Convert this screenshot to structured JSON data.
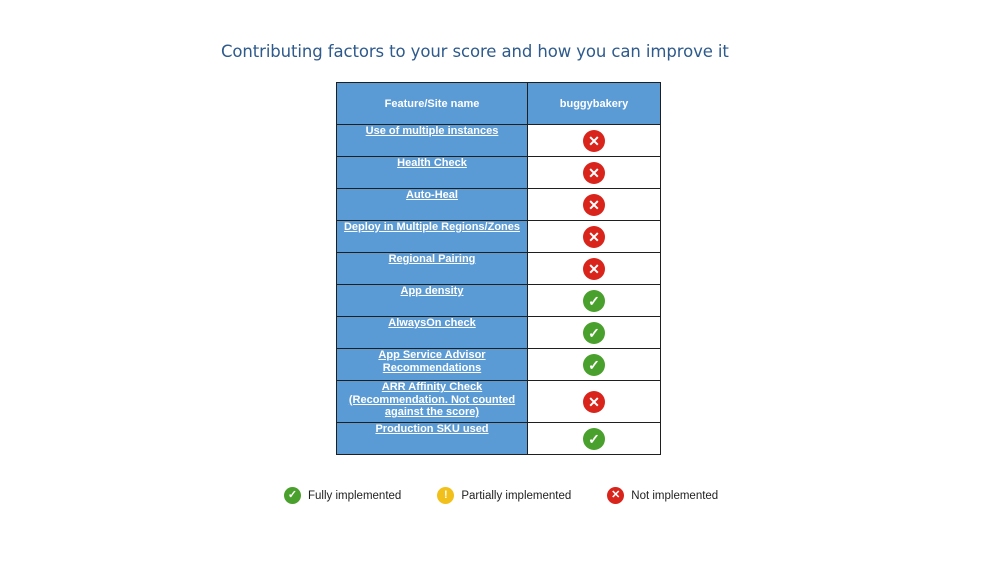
{
  "title": "Contributing factors to your score and how you can improve it",
  "table": {
    "header_feature": "Feature/Site name",
    "header_site": "buggybakery",
    "rows": [
      {
        "feature": "Use of multiple instances",
        "status": "not"
      },
      {
        "feature": "Health Check",
        "status": "not"
      },
      {
        "feature": "Auto-Heal",
        "status": "not"
      },
      {
        "feature": "Deploy in Multiple Regions/Zones",
        "status": "not"
      },
      {
        "feature": "Regional Pairing",
        "status": "not"
      },
      {
        "feature": "App density",
        "status": "fully"
      },
      {
        "feature": "AlwaysOn check",
        "status": "fully"
      },
      {
        "feature": "App Service Advisor Recommendations",
        "status": "fully"
      },
      {
        "feature": "ARR Affinity Check (Recommendation. Not counted against the score)",
        "status": "not"
      },
      {
        "feature": "Production SKU used",
        "status": "fully"
      }
    ]
  },
  "legend": {
    "fully": "Fully implemented",
    "partial": "Partially implemented",
    "not": "Not implemented"
  },
  "icons": {
    "fully": "check-circle-icon",
    "partial": "exclamation-circle-icon",
    "not": "x-circle-icon"
  },
  "colors": {
    "header_bg": "#5b9bd5",
    "title": "#2e5a8c",
    "fully": "#4aa02c",
    "partial": "#f2c01a",
    "not": "#d9241c"
  }
}
